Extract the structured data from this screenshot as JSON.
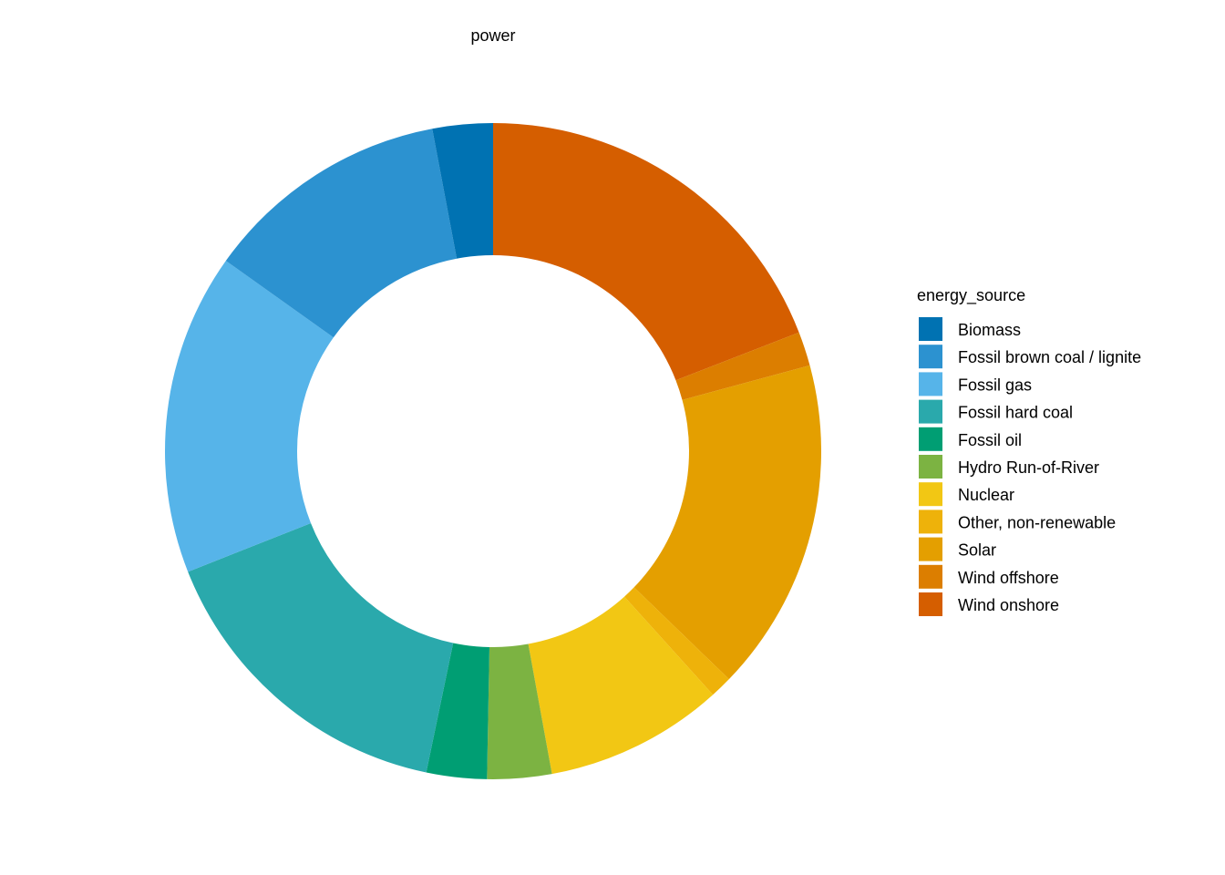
{
  "chart_data": {
    "type": "pie",
    "subtype": "donut",
    "title": "",
    "axis_label": "power",
    "legend": {
      "title": "energy_source",
      "position": "right"
    },
    "grid": false,
    "slices": [
      {
        "label": "Biomass",
        "value": 3.0,
        "color": "#0072B2"
      },
      {
        "label": "Fossil brown coal / lignite",
        "value": 12.3,
        "color": "#2C92D0"
      },
      {
        "label": "Fossil gas",
        "value": 16.0,
        "color": "#56B4E9"
      },
      {
        "label": "Fossil hard coal",
        "value": 15.9,
        "color": "#2AA9AC"
      },
      {
        "label": "Fossil oil",
        "value": 3.0,
        "color": "#009E73"
      },
      {
        "label": "Hydro Run-of-River",
        "value": 3.2,
        "color": "#7CB342"
      },
      {
        "label": "Nuclear",
        "value": 8.9,
        "color": "#F2C714"
      },
      {
        "label": "Other, non-renewable",
        "value": 1.1,
        "color": "#EEB20A"
      },
      {
        "label": "Solar",
        "value": 16.6,
        "color": "#E49F00"
      },
      {
        "label": "Wind offshore",
        "value": 1.7,
        "color": "#DC7E00"
      },
      {
        "label": "Wind onshore",
        "value": 19.3,
        "color": "#D55E00"
      }
    ]
  }
}
